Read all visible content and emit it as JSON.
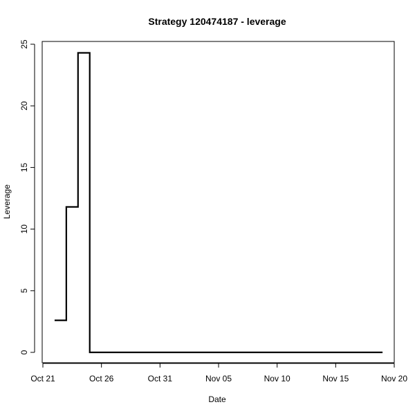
{
  "chart_data": {
    "type": "line",
    "title": "Strategy 120474187 - leverage",
    "xlabel": "Date",
    "ylabel": "Leverage",
    "line_style": "step",
    "line_color": "#000000",
    "grid": false,
    "legend": "none",
    "xlim": [
      "2023-10-21",
      "2023-11-20"
    ],
    "ylim": [
      0,
      25
    ],
    "x_ticks": [
      {
        "date": "2023-10-21",
        "label": "Oct 21"
      },
      {
        "date": "2023-10-26",
        "label": "Oct 26"
      },
      {
        "date": "2023-10-31",
        "label": "Oct 31"
      },
      {
        "date": "2023-11-05",
        "label": "Nov 05"
      },
      {
        "date": "2023-11-10",
        "label": "Nov 10"
      },
      {
        "date": "2023-11-15",
        "label": "Nov 15"
      },
      {
        "date": "2023-11-20",
        "label": "Nov 20"
      }
    ],
    "y_ticks": [
      0,
      5,
      10,
      15,
      20,
      25
    ],
    "series": [
      {
        "points": [
          {
            "x": "2023-10-22",
            "y": 2.6
          },
          {
            "x": "2023-10-23",
            "y": 11.8
          },
          {
            "x": "2023-10-24",
            "y": 24.3
          },
          {
            "x": "2023-10-25",
            "y": 0
          },
          {
            "x": "2023-11-19",
            "y": 0
          }
        ]
      }
    ]
  }
}
